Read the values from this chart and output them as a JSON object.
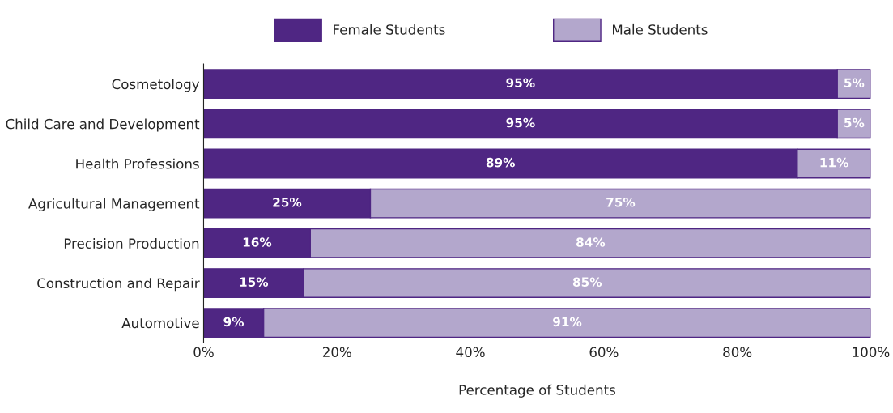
{
  "chart_data": {
    "type": "bar",
    "orientation": "horizontal",
    "stacked": true,
    "categories": [
      "Cosmetology",
      "Child Care and Development",
      "Health Professions",
      "Agricultural Management",
      "Precision Production",
      "Construction and Repair",
      "Automotive"
    ],
    "series": [
      {
        "name": "Female Students",
        "color": "#4f2683",
        "values": [
          95,
          95,
          89,
          25,
          16,
          15,
          9
        ],
        "value_labels": [
          "95%",
          "95%",
          "89%",
          "25%",
          "16%",
          "15%",
          "9%"
        ]
      },
      {
        "name": "Male Students",
        "color": "#b3a7cc",
        "values": [
          5,
          5,
          11,
          75,
          84,
          85,
          91
        ],
        "value_labels": [
          "5%",
          "5%",
          "11%",
          "75%",
          "84%",
          "85%",
          "91%"
        ]
      }
    ],
    "xlim": [
      0,
      100
    ],
    "xticks": [
      {
        "value": 0,
        "label": "0%"
      },
      {
        "value": 20,
        "label": "20%"
      },
      {
        "value": 40,
        "label": "40%"
      },
      {
        "value": 60,
        "label": "60%"
      },
      {
        "value": 80,
        "label": "80%"
      },
      {
        "value": 100,
        "label": "100%"
      }
    ],
    "xlabel": "Percentage of Students",
    "legend": "top",
    "grid": false
  }
}
